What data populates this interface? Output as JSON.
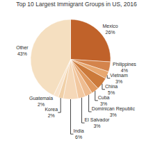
{
  "chart_data": {
    "type": "pie",
    "title": "Top 10 Largest Immigrant Groups in US, 2016",
    "categories": [
      "Mexico",
      "Philippines",
      "Vietnam",
      "China",
      "Cuba",
      "Dominican Republic",
      "El Salvador",
      "India",
      "Korea",
      "Guatemala",
      "Other"
    ],
    "values": [
      26,
      4,
      3,
      5,
      3,
      3,
      3,
      6,
      2,
      2,
      43
    ],
    "value_labels": [
      "26%",
      "4%",
      "3%",
      "5%",
      "3%",
      "3%",
      "3%",
      "6%",
      "2%",
      "2%",
      "43%"
    ],
    "colors": [
      "#c0622a",
      "#d4844c",
      "#e8a870",
      "#cc7a3a",
      "#e09a60",
      "#eebc90",
      "#f2c8a0",
      "#f5d8b8",
      "#f0d0a8",
      "#f8e4cc",
      "#f5dfc0"
    ],
    "data_labels": true
  }
}
